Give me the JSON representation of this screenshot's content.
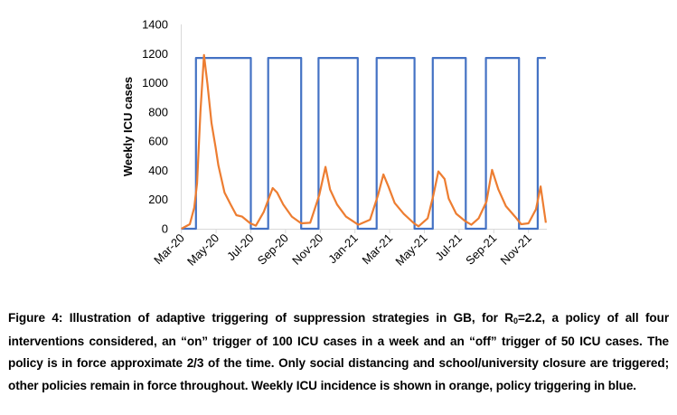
{
  "chart_data": {
    "type": "line",
    "title": "",
    "xlabel": "",
    "ylabel": "Weekly ICU cases",
    "ylim": [
      0,
      1400
    ],
    "yticks": [
      "0",
      "200",
      "400",
      "600",
      "800",
      "1000",
      "1200",
      "1400"
    ],
    "xticks": [
      "Mar-20",
      "May-20",
      "Jul-20",
      "Sep-20",
      "Nov-20",
      "Jan-21",
      "Mar-21",
      "May-21",
      "Jul-21",
      "Sep-21",
      "Nov-21"
    ],
    "xtick_dates": [
      "2020-03-01",
      "2020-05-01",
      "2020-07-01",
      "2020-09-01",
      "2020-11-01",
      "2021-01-01",
      "2021-03-01",
      "2021-05-01",
      "2021-07-01",
      "2021-09-01",
      "2021-11-01"
    ],
    "grid": false,
    "legend": "none",
    "series": [
      {
        "color": "#4472C4",
        "kind": "step",
        "on_value": 1170,
        "off_value": 0,
        "start": "2020-03-01",
        "end": "2021-12-01",
        "on_periods": [
          [
            "2020-03-27",
            "2020-07-01"
          ],
          [
            "2020-08-01",
            "2020-09-28"
          ],
          [
            "2020-10-29",
            "2021-01-06"
          ],
          [
            "2021-02-08",
            "2021-04-14"
          ],
          [
            "2021-05-16",
            "2021-07-13"
          ],
          [
            "2021-08-18",
            "2021-10-15"
          ],
          [
            "2021-11-17",
            "2021-12-01"
          ]
        ]
      },
      {
        "color": "#ED7D31",
        "kind": "line",
        "points": [
          [
            "2020-03-01",
            0
          ],
          [
            "2020-03-16",
            31
          ],
          [
            "2020-03-24",
            145
          ],
          [
            "2020-03-29",
            310
          ],
          [
            "2020-04-04",
            807
          ],
          [
            "2020-04-10",
            1190
          ],
          [
            "2020-04-16",
            993
          ],
          [
            "2020-04-23",
            724
          ],
          [
            "2020-04-30",
            559
          ],
          [
            "2020-05-05",
            434
          ],
          [
            "2020-05-16",
            248
          ],
          [
            "2020-05-27",
            166
          ],
          [
            "2020-06-06",
            93
          ],
          [
            "2020-06-16",
            83
          ],
          [
            "2020-06-30",
            37
          ],
          [
            "2020-07-10",
            21
          ],
          [
            "2020-07-24",
            114
          ],
          [
            "2020-08-09",
            279
          ],
          [
            "2020-08-17",
            248
          ],
          [
            "2020-08-28",
            166
          ],
          [
            "2020-09-12",
            83
          ],
          [
            "2020-09-28",
            37
          ],
          [
            "2020-10-14",
            41
          ],
          [
            "2020-10-30",
            228
          ],
          [
            "2020-11-10",
            424
          ],
          [
            "2020-11-18",
            269
          ],
          [
            "2020-11-30",
            166
          ],
          [
            "2020-12-16",
            83
          ],
          [
            "2021-01-07",
            27
          ],
          [
            "2021-01-28",
            62
          ],
          [
            "2021-02-10",
            228
          ],
          [
            "2021-02-19",
            372
          ],
          [
            "2021-02-27",
            290
          ],
          [
            "2021-03-10",
            176
          ],
          [
            "2021-03-26",
            103
          ],
          [
            "2021-04-13",
            37
          ],
          [
            "2021-04-21",
            17
          ],
          [
            "2021-05-07",
            72
          ],
          [
            "2021-05-17",
            228
          ],
          [
            "2021-05-26",
            393
          ],
          [
            "2021-06-06",
            341
          ],
          [
            "2021-06-13",
            207
          ],
          [
            "2021-06-26",
            103
          ],
          [
            "2021-07-12",
            52
          ],
          [
            "2021-07-23",
            27
          ],
          [
            "2021-08-05",
            72
          ],
          [
            "2021-08-19",
            186
          ],
          [
            "2021-08-29",
            403
          ],
          [
            "2021-09-09",
            269
          ],
          [
            "2021-09-22",
            155
          ],
          [
            "2021-10-08",
            83
          ],
          [
            "2021-10-19",
            31
          ],
          [
            "2021-11-01",
            37
          ],
          [
            "2021-11-14",
            134
          ],
          [
            "2021-11-22",
            290
          ],
          [
            "2021-12-01",
            41
          ]
        ]
      }
    ]
  },
  "caption": {
    "before": "Figure 4: Illustration of adaptive triggering of suppression strategies in GB, for R",
    "sub": "0",
    "after": "=2.2, a policy of all four interventions considered, an “on” trigger of 100 ICU cases in a week and an “off” trigger of 50 ICU cases.  The policy is in force approximate 2/3 of the time. Only social distancing and school/university closure are triggered; other policies remain in force throughout. Weekly ICU incidence is shown in orange, policy triggering in blue."
  }
}
